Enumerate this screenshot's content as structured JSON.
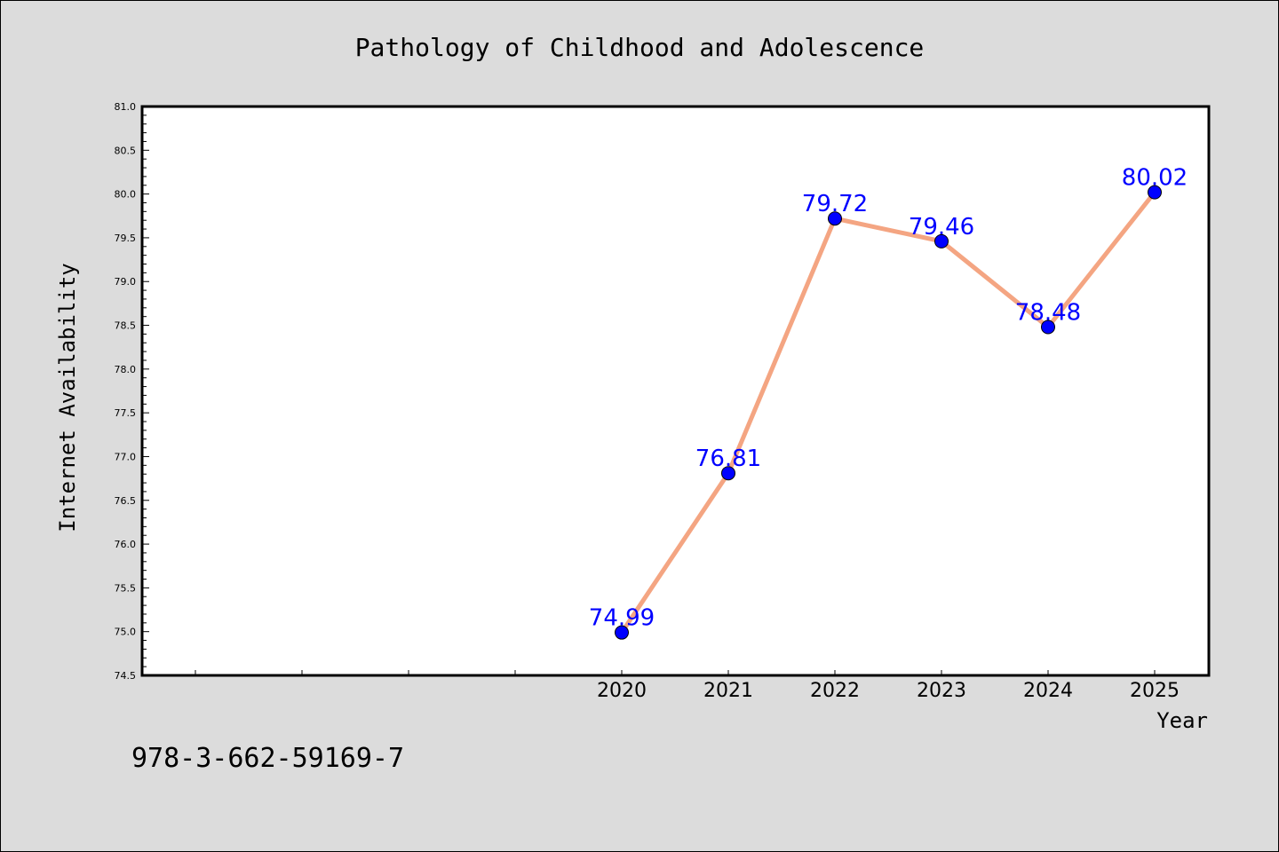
{
  "footer_text": "978-3-662-59169-7",
  "colors": {
    "background": "#dcdcdc",
    "plot_background": "#ffffff",
    "line": "#f4a582",
    "marker": "#0000ff",
    "data_label": "#0000ff"
  },
  "chart_data": {
    "type": "line",
    "title": "Pathology of Childhood and Adolescence",
    "xlabel": "Year",
    "ylabel": "Internet Availability",
    "x": [
      "2020",
      "2021",
      "2022",
      "2023",
      "2024",
      "2025"
    ],
    "series": [
      {
        "values": [
          74.99,
          76.81,
          79.72,
          79.46,
          78.48,
          80.02
        ]
      }
    ],
    "data_labels": [
      "74.99",
      "76.81",
      "79.72",
      "79.46",
      "78.48",
      "80.02"
    ],
    "ylim": [
      74.5,
      81.0
    ],
    "yticks": [
      "74.5",
      "75.0",
      "75.5",
      "76.0",
      "76.5",
      "77.0",
      "77.5",
      "78.0",
      "78.5",
      "79.0",
      "79.5",
      "80.0",
      "80.5",
      "81.0"
    ],
    "grid": false,
    "legend": "none"
  }
}
